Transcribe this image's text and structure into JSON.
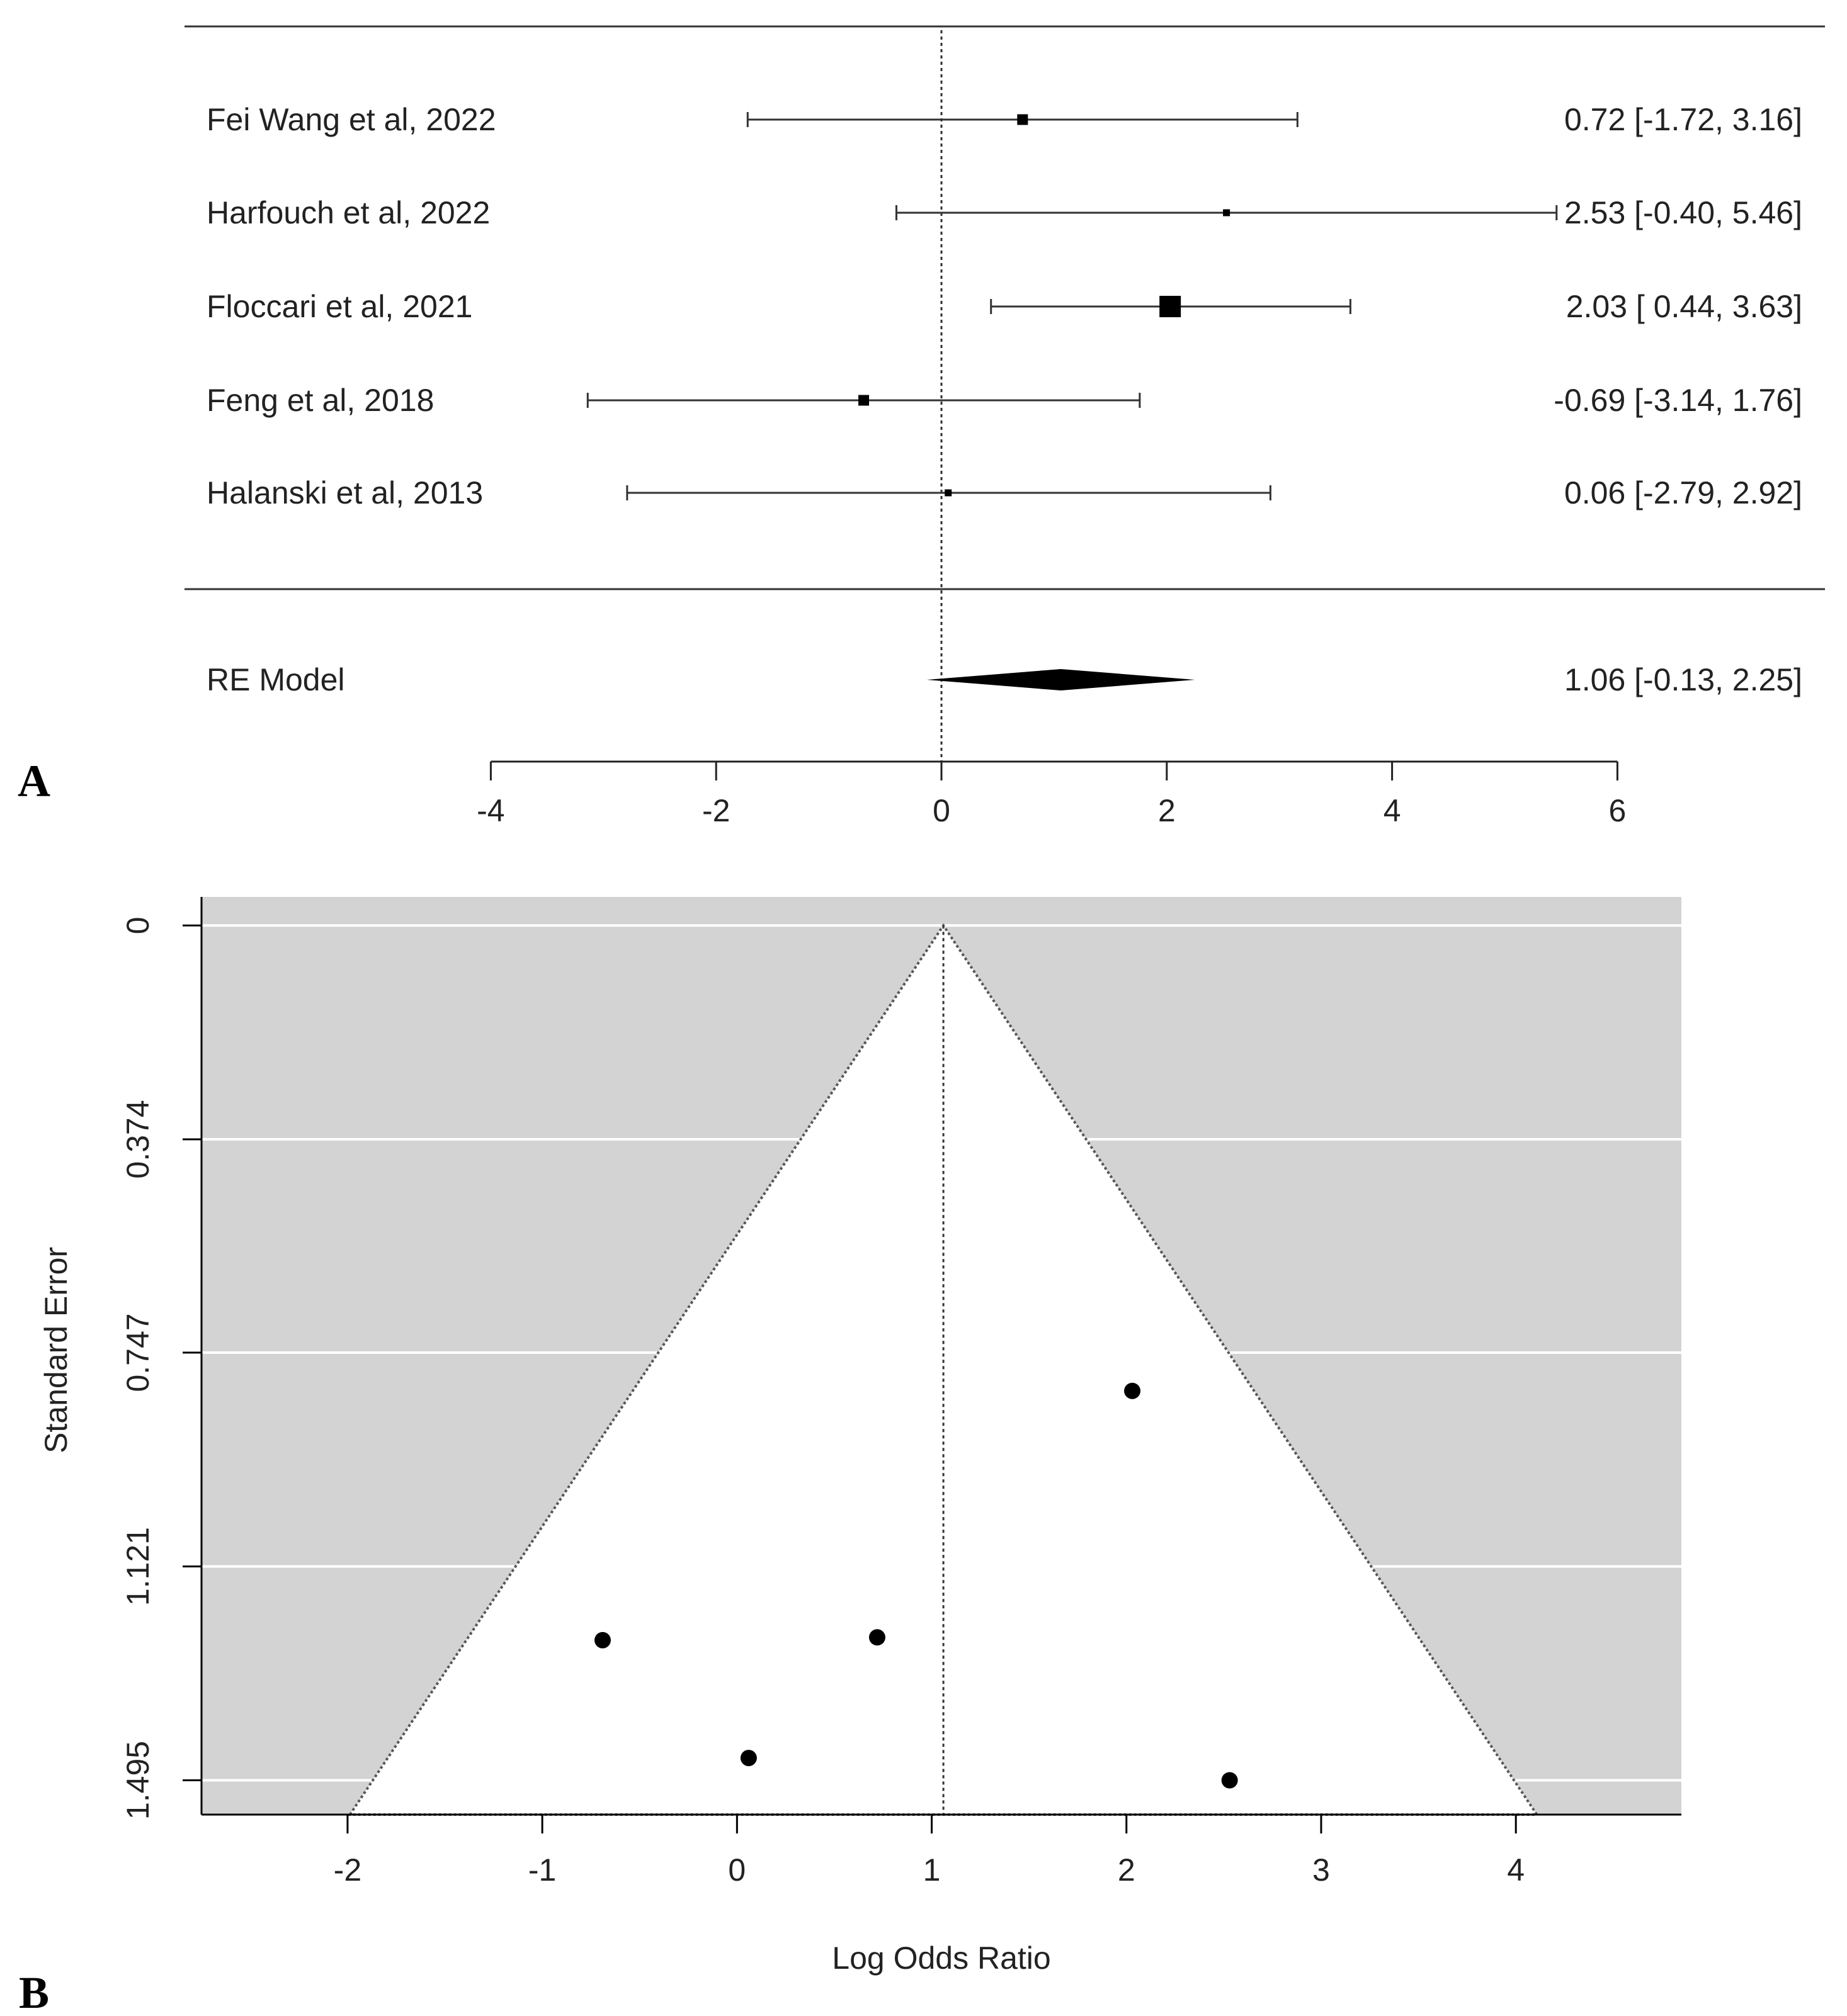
{
  "chart_data": [
    {
      "type": "forest",
      "panel_label": "A",
      "studies": [
        {
          "label": "Fei Wang et al, 2022",
          "estimate": 0.72,
          "ci_low": -1.72,
          "ci_high": 3.16,
          "ci_text": "0.72 [-1.72, 3.16]",
          "weight_marker": "medium"
        },
        {
          "label": "Harfouch et al, 2022",
          "estimate": 2.53,
          "ci_low": -0.4,
          "ci_high": 5.46,
          "ci_text": "2.53 [-0.40, 5.46]",
          "weight_marker": "small"
        },
        {
          "label": "Floccari et al, 2021",
          "estimate": 2.03,
          "ci_low": 0.44,
          "ci_high": 3.63,
          "ci_text": "2.03 [ 0.44, 3.63]",
          "weight_marker": "large"
        },
        {
          "label": "Feng et al, 2018",
          "estimate": -0.69,
          "ci_low": -3.14,
          "ci_high": 1.76,
          "ci_text": "-0.69 [-3.14, 1.76]",
          "weight_marker": "medium"
        },
        {
          "label": "Halanski et al, 2013",
          "estimate": 0.06,
          "ci_low": -2.79,
          "ci_high": 2.92,
          "ci_text": "0.06 [-2.79, 2.92]",
          "weight_marker": "small"
        }
      ],
      "summary": {
        "label": "RE Model",
        "estimate": 1.06,
        "ci_low": -0.13,
        "ci_high": 2.25,
        "ci_text": "1.06 [-0.13, 2.25]"
      },
      "reference_line": 0,
      "xlim": [
        -4,
        6
      ],
      "xticks": [
        -4,
        -2,
        0,
        2,
        4,
        6
      ],
      "xtick_labels": [
        "-4",
        "-2",
        "0",
        "2",
        "4",
        "6"
      ]
    },
    {
      "type": "scatter",
      "subtype": "funnel",
      "panel_label": "B",
      "xlabel": "Log Odds Ratio",
      "ylabel": "Standard Error",
      "xlim": [
        -2.75,
        4.85
      ],
      "ylim": [
        1.555,
        -0.05
      ],
      "xticks": [
        -2,
        -1,
        0,
        1,
        2,
        3,
        4
      ],
      "xtick_labels": [
        "-2",
        "-1",
        "0",
        "1",
        "2",
        "3",
        "4"
      ],
      "yticks": [
        0,
        0.374,
        0.747,
        1.121,
        1.495
      ],
      "ytick_labels": [
        "0",
        "0.374",
        "0.747",
        "1.121",
        "1.495"
      ],
      "center_estimate": 1.06,
      "funnel_z": 1.96,
      "points": [
        {
          "x": 0.72,
          "y": 1.245
        },
        {
          "x": 2.53,
          "y": 1.495
        },
        {
          "x": 2.03,
          "y": 0.814
        },
        {
          "x": -0.69,
          "y": 1.25
        },
        {
          "x": 0.06,
          "y": 1.456
        }
      ],
      "colors": {
        "panel_background": "#d3d3d3",
        "funnel_fill": "#ffffff",
        "gridline": "#ffffff",
        "point": "#000000"
      }
    }
  ]
}
